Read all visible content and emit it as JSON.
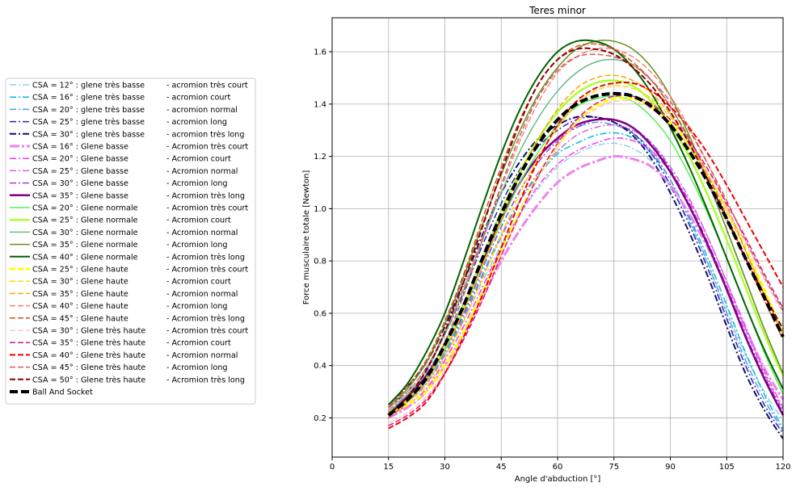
{
  "chart_data": {
    "type": "line",
    "title": "Teres minor",
    "xlabel": "Angle d'abduction [°]",
    "ylabel": "Force musculaire totale [Newton]",
    "xlim": [
      0,
      120
    ],
    "ylim": [
      0.05,
      1.73
    ],
    "xticks": [
      0,
      15,
      30,
      45,
      60,
      75,
      90,
      105,
      120
    ],
    "yticks": [
      0.2,
      0.4,
      0.6,
      0.8,
      1.0,
      1.2,
      1.4,
      1.6
    ],
    "ytick_labels": [
      "0.2",
      "0.4",
      "0.6",
      "0.8",
      "1.0",
      "1.2",
      "1.4",
      "1.6"
    ],
    "grid": true,
    "legend_position": "left, outside plot",
    "x": [
      15,
      20,
      25,
      30,
      35,
      40,
      45,
      50,
      55,
      60,
      65,
      70,
      75,
      80,
      85,
      90,
      95,
      100,
      105,
      110,
      115,
      120
    ],
    "series": [
      {
        "name": "CSA = 12° : glene très basse       -  acromion très court",
        "color": "#8fd3e0",
        "dash": "8,3,2,3",
        "width": 1.5,
        "values": [
          0.22,
          0.27,
          0.33,
          0.44,
          0.57,
          0.72,
          0.86,
          0.98,
          1.08,
          1.16,
          1.21,
          1.24,
          1.25,
          1.23,
          1.18,
          1.08,
          0.95,
          0.79,
          0.61,
          0.44,
          0.3,
          0.19
        ]
      },
      {
        "name": "CSA = 16° : glene très basse       -  acromion court",
        "color": "#00bcd4",
        "dash": "8,3,2,3",
        "width": 1.5,
        "values": [
          0.21,
          0.27,
          0.34,
          0.45,
          0.59,
          0.75,
          0.9,
          1.03,
          1.13,
          1.21,
          1.25,
          1.28,
          1.29,
          1.27,
          1.21,
          1.11,
          0.97,
          0.81,
          0.63,
          0.45,
          0.29,
          0.16
        ]
      },
      {
        "name": "CSA = 20° : glene très basse       -  acromion normal",
        "color": "#6495ed",
        "dash": "8,3,2,3",
        "width": 1.5,
        "values": [
          0.23,
          0.29,
          0.37,
          0.49,
          0.64,
          0.81,
          0.97,
          1.1,
          1.2,
          1.27,
          1.31,
          1.33,
          1.32,
          1.29,
          1.22,
          1.11,
          0.96,
          0.79,
          0.6,
          0.42,
          0.27,
          0.15
        ]
      },
      {
        "name": "CSA = 25° : glene très basse       -  acromion long",
        "color": "#2222bb",
        "dash": "8,3,2,3",
        "width": 1.5,
        "values": [
          0.24,
          0.3,
          0.39,
          0.52,
          0.68,
          0.86,
          1.02,
          1.15,
          1.24,
          1.3,
          1.34,
          1.35,
          1.33,
          1.29,
          1.21,
          1.09,
          0.94,
          0.77,
          0.58,
          0.4,
          0.25,
          0.14
        ]
      },
      {
        "name": "CSA = 30° : glene très basse       -  acromion très long",
        "color": "#10106e",
        "dash": "8,3,2,3",
        "width": 2,
        "values": [
          0.25,
          0.32,
          0.41,
          0.55,
          0.72,
          0.9,
          1.06,
          1.18,
          1.27,
          1.32,
          1.35,
          1.35,
          1.33,
          1.28,
          1.19,
          1.06,
          0.91,
          0.74,
          0.55,
          0.37,
          0.23,
          0.12
        ]
      },
      {
        "name": "CSA = 16° : Glene basse              -  Acromion très court",
        "color": "#ee82ee",
        "dash": "12,3,3,3",
        "width": 3,
        "values": [
          0.2,
          0.24,
          0.3,
          0.4,
          0.52,
          0.66,
          0.8,
          0.92,
          1.02,
          1.1,
          1.15,
          1.18,
          1.2,
          1.19,
          1.16,
          1.09,
          0.98,
          0.85,
          0.7,
          0.54,
          0.39,
          0.27
        ]
      },
      {
        "name": "CSA = 20° : Glene basse              -  Acromion court",
        "color": "#ff33ff",
        "dash": "8,3,2,3",
        "width": 1.5,
        "values": [
          0.2,
          0.25,
          0.31,
          0.42,
          0.55,
          0.7,
          0.85,
          0.98,
          1.09,
          1.17,
          1.22,
          1.25,
          1.27,
          1.26,
          1.22,
          1.14,
          1.03,
          0.89,
          0.72,
          0.55,
          0.38,
          0.24
        ]
      },
      {
        "name": "CSA = 25° : Glene basse              -  Acromion normal",
        "color": "#cc66dd",
        "dash": "8,3,2,3",
        "width": 1.5,
        "values": [
          0.21,
          0.26,
          0.33,
          0.44,
          0.58,
          0.74,
          0.89,
          1.03,
          1.14,
          1.22,
          1.28,
          1.31,
          1.32,
          1.3,
          1.25,
          1.16,
          1.04,
          0.89,
          0.72,
          0.54,
          0.37,
          0.23
        ]
      },
      {
        "name": "CSA = 30° : Glene basse              -  Acromion long",
        "color": "#a040d0",
        "dash": "8,3,2,3",
        "width": 1.5,
        "values": [
          0.21,
          0.27,
          0.34,
          0.46,
          0.6,
          0.77,
          0.93,
          1.07,
          1.18,
          1.26,
          1.31,
          1.34,
          1.34,
          1.31,
          1.25,
          1.15,
          1.02,
          0.87,
          0.7,
          0.52,
          0.36,
          0.22
        ]
      },
      {
        "name": "CSA = 35° : Glene basse              -  Acromion très long",
        "color": "#800080",
        "dash": "",
        "width": 2.5,
        "values": [
          0.22,
          0.28,
          0.36,
          0.48,
          0.63,
          0.8,
          0.96,
          1.1,
          1.2,
          1.27,
          1.32,
          1.34,
          1.34,
          1.31,
          1.24,
          1.14,
          1.01,
          0.86,
          0.69,
          0.51,
          0.35,
          0.21
        ]
      },
      {
        "name": "CSA = 20° : Glene normale          -  Acromion très court",
        "color": "#55ee55",
        "dash": "",
        "width": 1.5,
        "values": [
          0.2,
          0.26,
          0.34,
          0.46,
          0.61,
          0.78,
          0.95,
          1.1,
          1.22,
          1.32,
          1.39,
          1.42,
          1.43,
          1.41,
          1.35,
          1.26,
          1.13,
          0.98,
          0.81,
          0.63,
          0.45,
          0.29
        ]
      },
      {
        "name": "CSA = 25° : Glene normale          -  Acromion court",
        "color": "#adff2f",
        "dash": "",
        "width": 2.5,
        "values": [
          0.21,
          0.27,
          0.35,
          0.48,
          0.63,
          0.81,
          0.99,
          1.14,
          1.27,
          1.37,
          1.44,
          1.48,
          1.49,
          1.47,
          1.41,
          1.32,
          1.2,
          1.05,
          0.88,
          0.7,
          0.52,
          0.36
        ]
      },
      {
        "name": "CSA = 30° : Glene normale          -  Acromion normal",
        "color": "#66bb88",
        "dash": "",
        "width": 1.5,
        "values": [
          0.22,
          0.29,
          0.38,
          0.52,
          0.69,
          0.88,
          1.06,
          1.22,
          1.35,
          1.45,
          1.52,
          1.56,
          1.57,
          1.55,
          1.49,
          1.39,
          1.26,
          1.1,
          0.92,
          0.73,
          0.54,
          0.37
        ]
      },
      {
        "name": "CSA = 35° : Glene normale          -  Acromion long",
        "color": "#6b8e23",
        "dash": "",
        "width": 1.5,
        "values": [
          0.24,
          0.31,
          0.41,
          0.56,
          0.74,
          0.94,
          1.13,
          1.3,
          1.44,
          1.54,
          1.61,
          1.64,
          1.64,
          1.61,
          1.54,
          1.43,
          1.28,
          1.11,
          0.92,
          0.73,
          0.54,
          0.37
        ]
      },
      {
        "name": "CSA = 40° : Glene normale          -  Acromion très long",
        "color": "#006400",
        "dash": "",
        "width": 2,
        "values": [
          0.25,
          0.33,
          0.45,
          0.6,
          0.8,
          1.01,
          1.21,
          1.38,
          1.51,
          1.6,
          1.64,
          1.64,
          1.61,
          1.54,
          1.44,
          1.31,
          1.16,
          0.99,
          0.81,
          0.63,
          0.46,
          0.31
        ]
      },
      {
        "name": "CSA = 25° : Glene haute             -  Acromion très court",
        "color": "#ffff00",
        "dash": "7,3",
        "width": 3,
        "values": [
          0.21,
          0.25,
          0.3,
          0.4,
          0.53,
          0.68,
          0.84,
          0.99,
          1.13,
          1.24,
          1.33,
          1.39,
          1.42,
          1.42,
          1.39,
          1.33,
          1.24,
          1.13,
          1.0,
          0.85,
          0.69,
          0.52
        ]
      },
      {
        "name": "CSA = 30° : Glene haute             -  Acromion court",
        "color": "#ffd700",
        "dash": "7,3",
        "width": 1.5,
        "values": [
          0.21,
          0.26,
          0.32,
          0.43,
          0.57,
          0.73,
          0.9,
          1.06,
          1.2,
          1.31,
          1.4,
          1.45,
          1.47,
          1.46,
          1.42,
          1.35,
          1.25,
          1.13,
          0.99,
          0.84,
          0.68,
          0.52
        ]
      },
      {
        "name": "CSA = 35° : Glene haute             -  Acromion normal",
        "color": "#ffa500",
        "dash": "7,3",
        "width": 1.5,
        "values": [
          0.22,
          0.27,
          0.34,
          0.46,
          0.61,
          0.78,
          0.96,
          1.13,
          1.27,
          1.38,
          1.46,
          1.5,
          1.51,
          1.49,
          1.44,
          1.36,
          1.25,
          1.12,
          0.97,
          0.81,
          0.65,
          0.5
        ]
      },
      {
        "name": "CSA = 40° : Glene haute             -  Acromion long",
        "color": "#fa8072",
        "dash": "7,3",
        "width": 1.5,
        "values": [
          0.23,
          0.3,
          0.39,
          0.53,
          0.7,
          0.89,
          1.08,
          1.26,
          1.41,
          1.52,
          1.58,
          1.61,
          1.61,
          1.58,
          1.52,
          1.43,
          1.31,
          1.17,
          1.01,
          0.84,
          0.67,
          0.52
        ]
      },
      {
        "name": "CSA = 45° : Glene haute             -  Acromion très long",
        "color": "#e34a1a",
        "dash": "7,3",
        "width": 1.5,
        "values": [
          0.24,
          0.32,
          0.42,
          0.57,
          0.75,
          0.96,
          1.16,
          1.34,
          1.48,
          1.57,
          1.62,
          1.63,
          1.61,
          1.56,
          1.49,
          1.39,
          1.27,
          1.13,
          0.97,
          0.81,
          0.65,
          0.5
        ]
      },
      {
        "name": "CSA = 30° : Glene très haute       -  Acromion très court",
        "color": "#ffc0cb",
        "dash": "7,3",
        "width": 1.5,
        "values": [
          0.18,
          0.22,
          0.28,
          0.38,
          0.51,
          0.66,
          0.82,
          0.98,
          1.12,
          1.24,
          1.33,
          1.38,
          1.41,
          1.41,
          1.38,
          1.32,
          1.24,
          1.13,
          1.0,
          0.87,
          0.73,
          0.6
        ]
      },
      {
        "name": "CSA = 35° : Glene très haute       -  Acromion court",
        "color": "#dd1188",
        "dash": "7,3",
        "width": 1.5,
        "values": [
          0.17,
          0.21,
          0.27,
          0.37,
          0.5,
          0.65,
          0.82,
          0.98,
          1.13,
          1.25,
          1.34,
          1.4,
          1.43,
          1.43,
          1.4,
          1.34,
          1.26,
          1.15,
          1.02,
          0.89,
          0.75,
          0.62
        ]
      },
      {
        "name": "CSA = 40° : Glene très haute       -  Acromion normal",
        "color": "#ee0000",
        "dash": "7,3",
        "width": 2,
        "values": [
          0.16,
          0.2,
          0.26,
          0.37,
          0.51,
          0.67,
          0.85,
          1.03,
          1.19,
          1.32,
          1.41,
          1.46,
          1.48,
          1.48,
          1.45,
          1.39,
          1.31,
          1.21,
          1.09,
          0.96,
          0.83,
          0.7
        ]
      },
      {
        "name": "CSA = 45° : Glene très haute       -  Acromion long",
        "color": "#cd5c5c",
        "dash": "7,3",
        "width": 1.5,
        "values": [
          0.2,
          0.26,
          0.35,
          0.49,
          0.67,
          0.88,
          1.09,
          1.28,
          1.43,
          1.53,
          1.58,
          1.59,
          1.58,
          1.55,
          1.49,
          1.41,
          1.3,
          1.17,
          1.03,
          0.88,
          0.74,
          0.61
        ]
      },
      {
        "name": "CSA = 50° : Glene très haute       -  Acromion très long",
        "color": "#8b0000",
        "dash": "7,3",
        "width": 2,
        "values": [
          0.21,
          0.28,
          0.38,
          0.53,
          0.72,
          0.93,
          1.14,
          1.33,
          1.48,
          1.57,
          1.61,
          1.61,
          1.59,
          1.54,
          1.47,
          1.37,
          1.25,
          1.11,
          0.96,
          0.81,
          0.67,
          0.54
        ]
      },
      {
        "name": "Ball And Socket",
        "color": "#000000",
        "dash": "10,4",
        "width": 4,
        "values": [
          0.21,
          0.27,
          0.35,
          0.48,
          0.63,
          0.81,
          0.98,
          1.13,
          1.25,
          1.34,
          1.4,
          1.43,
          1.44,
          1.43,
          1.39,
          1.32,
          1.22,
          1.1,
          0.96,
          0.81,
          0.66,
          0.51
        ]
      }
    ]
  }
}
